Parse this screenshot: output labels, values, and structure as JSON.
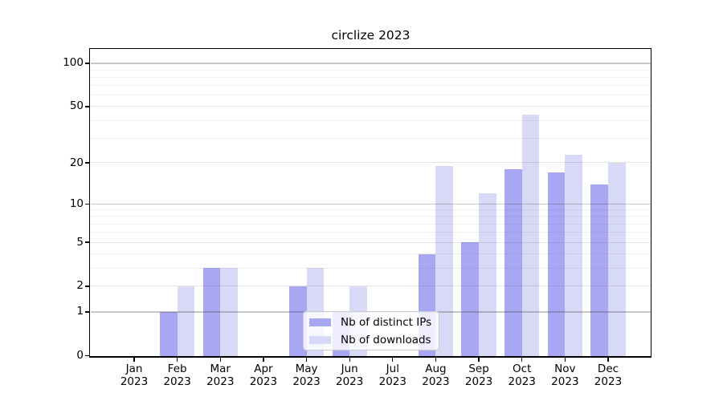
{
  "chart": {
    "title": "circlize 2023"
  },
  "legend": {
    "items": [
      {
        "label": "Nb of distinct IPs",
        "color": "#a7a7f3"
      },
      {
        "label": "Nb of downloads",
        "color": "#d8d8f7"
      }
    ]
  },
  "chart_data": {
    "type": "bar",
    "title": "circlize 2023",
    "categories": [
      "Jan 2023",
      "Feb 2023",
      "Mar 2023",
      "Apr 2023",
      "May 2023",
      "Jun 2023",
      "Jul 2023",
      "Aug 2023",
      "Sep 2023",
      "Oct 2023",
      "Nov 2023",
      "Dec 2023"
    ],
    "series": [
      {
        "name": "Nb of distinct IPs",
        "color": "#a7a7f3",
        "values": [
          0,
          1,
          3,
          0,
          2,
          1,
          0,
          4,
          5,
          18,
          17,
          14
        ]
      },
      {
        "name": "Nb of downloads",
        "color": "#d8d8f7",
        "values": [
          0,
          2,
          3,
          0,
          3,
          2,
          0,
          19,
          12,
          44,
          23,
          20
        ]
      }
    ],
    "xlabel": "",
    "ylabel": "",
    "yscale": "log1p",
    "ylim": [
      0,
      126
    ],
    "yticks": [
      0,
      1,
      2,
      5,
      10,
      20,
      50,
      100
    ],
    "ytick_labels": [
      "0",
      "1",
      "2",
      "5",
      "10",
      "20",
      "50",
      "100"
    ],
    "major_gridlines": [
      1,
      10,
      100
    ],
    "mid_gridlines": [
      2,
      5,
      20,
      50
    ],
    "minor_gridlines": [
      3,
      4,
      6,
      7,
      8,
      9,
      30,
      40,
      60,
      70,
      80,
      90
    ],
    "grid": true,
    "legend_position": "lower center"
  }
}
